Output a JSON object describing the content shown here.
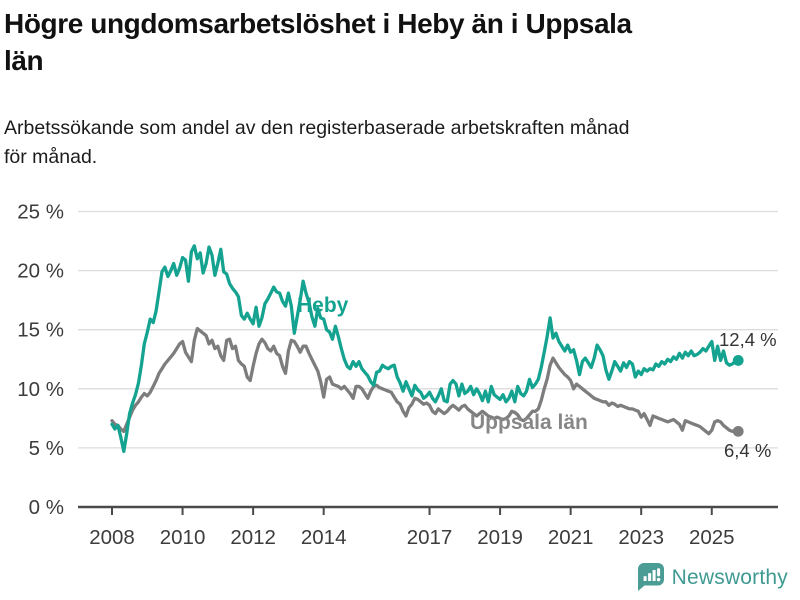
{
  "header": {
    "title": "Högre ungdomsarbetslöshet i Heby än i Uppsala län",
    "title_lines": [
      "Högre ungdomsarbetslöshet i Heby än i Uppsala",
      "län"
    ],
    "subtitle": "Arbetssökande som andel av den registerbaserade arbetskraften månad för månad.",
    "subtitle_lines": [
      "Arbetssökande som andel av den registerbaserade arbetskraften månad",
      "för månad."
    ]
  },
  "chart_data": {
    "type": "line",
    "title": "Högre ungdomsarbetslöshet i Heby än i Uppsala län",
    "unit": "%",
    "frequency": "monthly",
    "x_start_year": 2008,
    "x_end": "2025-10",
    "x_tick_years": [
      2008,
      2010,
      2012,
      2014,
      2017,
      2019,
      2021,
      2023,
      2025
    ],
    "x_tick_labels": [
      "2008",
      "2010",
      "2012",
      "2014",
      "2017",
      "2019",
      "2021",
      "2023",
      "2025"
    ],
    "y_ticks": [
      0,
      5,
      10,
      15,
      20,
      25
    ],
    "y_tick_labels": [
      "0 %",
      "5 %",
      "10 %",
      "15 %",
      "20 %",
      "25 %"
    ],
    "ylim": [
      0,
      25
    ],
    "grid": true,
    "legend_position": "inline-labels",
    "series": [
      {
        "name": "Heby",
        "color": "#14a390",
        "end_label": "12,4 %",
        "end_value": 12.4,
        "values": [
          7.0,
          6.6,
          6.9,
          5.9,
          4.7,
          6.2,
          7.9,
          8.8,
          9.5,
          10.5,
          12.0,
          13.8,
          14.8,
          15.9,
          15.6,
          16.6,
          18.2,
          19.9,
          20.3,
          19.5,
          20.0,
          20.6,
          19.6,
          20.2,
          21.1,
          20.9,
          19.1,
          21.6,
          22.1,
          21.0,
          21.5,
          19.8,
          20.6,
          22.0,
          21.3,
          19.6,
          20.6,
          21.8,
          19.9,
          19.7,
          18.9,
          18.5,
          18.2,
          17.8,
          16.2,
          15.9,
          16.4,
          15.9,
          15.5,
          16.9,
          15.3,
          16.0,
          17.2,
          17.6,
          18.1,
          18.6,
          18.2,
          18.1,
          17.4,
          17.0,
          18.1,
          17.0,
          14.7,
          16.1,
          17.5,
          19.1,
          18.1,
          17.3,
          16.1,
          15.3,
          16.8,
          16.0,
          15.9,
          15.0,
          14.8,
          14.2,
          15.3,
          14.4,
          13.4,
          12.5,
          11.9,
          11.7,
          12.3,
          11.9,
          12.3,
          11.7,
          11.4,
          11.1,
          10.6,
          10.3,
          11.4,
          11.5,
          12.0,
          11.8,
          11.7,
          11.9,
          12.0,
          11.0,
          10.5,
          9.8,
          10.6,
          10.0,
          9.4,
          10.3,
          9.9,
          9.7,
          9.2,
          9.4,
          9.7,
          9.2,
          8.9,
          9.4,
          10.0,
          9.0,
          8.9,
          10.4,
          10.7,
          10.4,
          9.4,
          10.4,
          9.6,
          9.8,
          10.2,
          9.5,
          10.0,
          9.6,
          9.0,
          9.8,
          8.9,
          10.2,
          9.5,
          9.3,
          9.1,
          9.5,
          8.9,
          9.2,
          9.8,
          8.9,
          10.2,
          9.6,
          9.4,
          9.8,
          10.8,
          10.1,
          10.4,
          10.8,
          11.8,
          13.1,
          14.4,
          16.0,
          14.3,
          14.7,
          14.0,
          13.6,
          13.2,
          13.7,
          13.1,
          13.3,
          12.4,
          11.2,
          12.3,
          12.6,
          12.2,
          11.8,
          12.6,
          13.7,
          13.3,
          12.8,
          11.6,
          10.8,
          11.5,
          12.3,
          11.9,
          11.5,
          12.2,
          11.8,
          12.3,
          12.1,
          11.0,
          11.5,
          11.2,
          11.7,
          11.5,
          11.7,
          11.6,
          12.1,
          11.9,
          12.3,
          12.1,
          12.5,
          12.3,
          12.7,
          12.5,
          13.0,
          12.6,
          13.1,
          12.8,
          13.2,
          12.8,
          12.9,
          13.1,
          13.4,
          13.2,
          13.6,
          14.0,
          12.4,
          13.6,
          12.4,
          13.2,
          12.2,
          12.0,
          12.1,
          12.3,
          12.4
        ]
      },
      {
        "name": "Uppsala län",
        "color": "#7d7d7d",
        "end_label": "6,4 %",
        "end_value": 6.4,
        "values": [
          7.3,
          7.0,
          6.9,
          6.6,
          6.4,
          7.0,
          7.6,
          8.2,
          8.6,
          8.9,
          9.3,
          9.6,
          9.4,
          9.7,
          10.2,
          10.7,
          11.3,
          11.7,
          12.1,
          12.4,
          12.7,
          13.0,
          13.4,
          13.8,
          14.0,
          13.1,
          12.7,
          12.3,
          14.1,
          15.1,
          14.9,
          14.7,
          14.5,
          13.8,
          14.1,
          13.4,
          13.6,
          12.8,
          12.4,
          14.1,
          14.2,
          13.4,
          13.6,
          12.4,
          12.1,
          11.9,
          11.0,
          10.7,
          11.9,
          13.0,
          13.8,
          14.2,
          13.9,
          13.4,
          13.2,
          13.6,
          13.0,
          12.8,
          11.9,
          11.3,
          13.2,
          14.1,
          14.0,
          13.6,
          13.1,
          13.6,
          13.6,
          13.0,
          12.5,
          12.0,
          11.5,
          10.6,
          9.3,
          10.8,
          11.0,
          10.4,
          10.3,
          10.2,
          10.0,
          10.2,
          9.9,
          9.6,
          9.2,
          10.2,
          10.2,
          10.0,
          9.6,
          9.2,
          9.8,
          10.2,
          10.3,
          10.1,
          10.0,
          9.9,
          9.8,
          9.7,
          9.3,
          8.9,
          8.7,
          8.1,
          7.7,
          8.4,
          8.7,
          9.2,
          9.1,
          8.9,
          8.7,
          8.8,
          8.6,
          8.1,
          7.9,
          8.3,
          8.1,
          7.9,
          8.1,
          8.4,
          8.6,
          8.4,
          8.2,
          8.5,
          8.6,
          8.3,
          8.1,
          7.9,
          7.7,
          7.9,
          8.1,
          7.9,
          7.7,
          7.6,
          7.5,
          7.6,
          7.5,
          7.4,
          7.5,
          7.7,
          8.1,
          8.0,
          7.8,
          7.4,
          7.3,
          7.5,
          7.8,
          8.1,
          8.1,
          8.3,
          9.0,
          10.0,
          10.8,
          12.0,
          12.6,
          12.2,
          11.8,
          11.5,
          11.2,
          11.0,
          10.7,
          10.0,
          10.4,
          10.2,
          10.0,
          9.8,
          9.6,
          9.4,
          9.2,
          9.1,
          9.0,
          8.9,
          8.9,
          8.6,
          8.8,
          8.7,
          8.5,
          8.6,
          8.5,
          8.4,
          8.3,
          8.3,
          8.2,
          8.1,
          7.6,
          7.9,
          7.4,
          6.9,
          7.7,
          7.6,
          7.5,
          7.4,
          7.3,
          7.2,
          7.3,
          7.4,
          7.2,
          7.0,
          6.5,
          7.3,
          7.2,
          7.1,
          7.0,
          6.9,
          6.8,
          6.6,
          6.4,
          6.2,
          6.5,
          7.2,
          7.3,
          7.2,
          6.9,
          6.7,
          6.5,
          6.4,
          6.5,
          6.4
        ]
      }
    ],
    "colors": {
      "heby_line": "#14a390",
      "uppsala_line": "#7d7d7d",
      "grid_line": "#dcdcdc",
      "axis_line": "#4a4a4a",
      "tick_text": "#3c3c3c",
      "value_label_text": "#333333"
    }
  },
  "footer": {
    "brand": "Newsworthy",
    "brand_color": "#3f9a92",
    "logo_icon": "bar-chart-speech-bubble-icon"
  }
}
